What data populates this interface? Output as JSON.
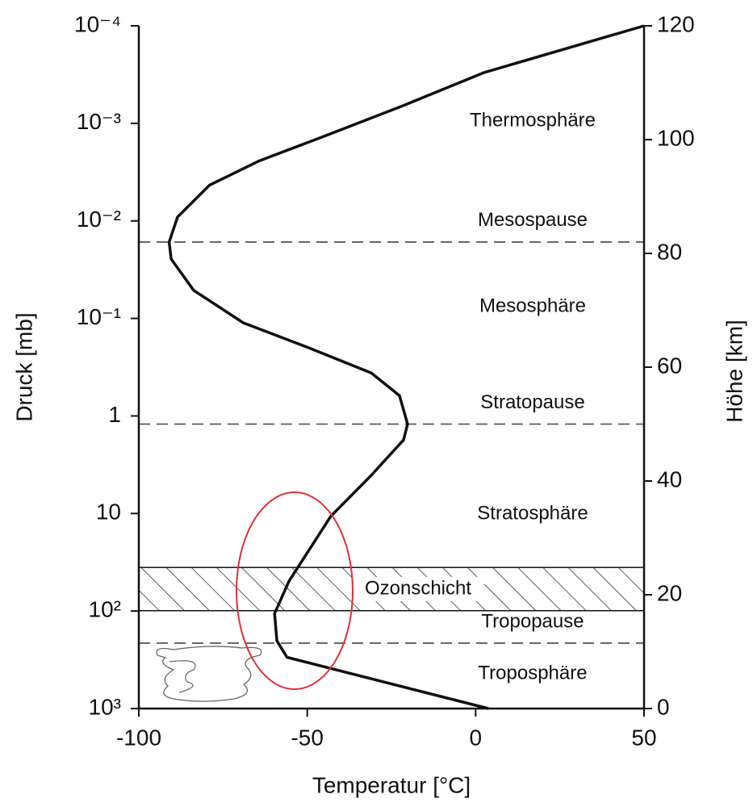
{
  "chart_data": {
    "type": "line",
    "xlabel": "Temperatur [°C]",
    "ylabel": "Höhe [km]",
    "x": [
      3.8,
      -56,
      -59,
      -59.7,
      -55.4,
      -43,
      -31,
      -21.4,
      -20.2,
      -22.6,
      -31,
      -50,
      -69,
      -83.7,
      -90.4,
      -91,
      -88.5,
      -79,
      -64.5,
      -45.4,
      -21.4,
      2.6,
      50
    ],
    "values": [
      0,
      9,
      11.9,
      16.7,
      22.4,
      33.8,
      41,
      47.2,
      50,
      55,
      59,
      63.5,
      67.8,
      73.5,
      79,
      82,
      86.4,
      92,
      96.2,
      100.5,
      106,
      111.8,
      120
    ],
    "color": "#111111",
    "xlim": [
      -100,
      50
    ],
    "xticks": [
      -100,
      -50,
      0,
      50
    ],
    "ylim": [
      0,
      120
    ],
    "yticks": [
      0,
      20,
      40,
      60,
      80,
      100,
      120
    ],
    "pressure_axis": {
      "label": "Druck [mb]",
      "log": true,
      "lim": [
        1000,
        0.0001
      ],
      "ticks": [
        {
          "value": 0.0001,
          "label": "10⁻⁴"
        },
        {
          "value": 0.001,
          "label": "10⁻³"
        },
        {
          "value": 0.01,
          "label": "10⁻²"
        },
        {
          "value": 0.1,
          "label": "10⁻¹"
        },
        1,
        10,
        {
          "value": 100,
          "label": "10²"
        },
        {
          "value": 1000,
          "label": "10³"
        }
      ]
    },
    "boundaries": [
      {
        "label": "Mesospause",
        "height": 82
      },
      {
        "label": "Stratopause",
        "height": 50
      },
      {
        "label": "Tropopause",
        "height": 11.5
      }
    ],
    "ozone_layer": {
      "label": "Ozonschicht",
      "range": [
        17.2,
        24.8
      ]
    },
    "region_labels": [
      "Thermosphäre",
      "Mesosphäre",
      "Stratosphäre",
      "Troposphäre"
    ]
  }
}
